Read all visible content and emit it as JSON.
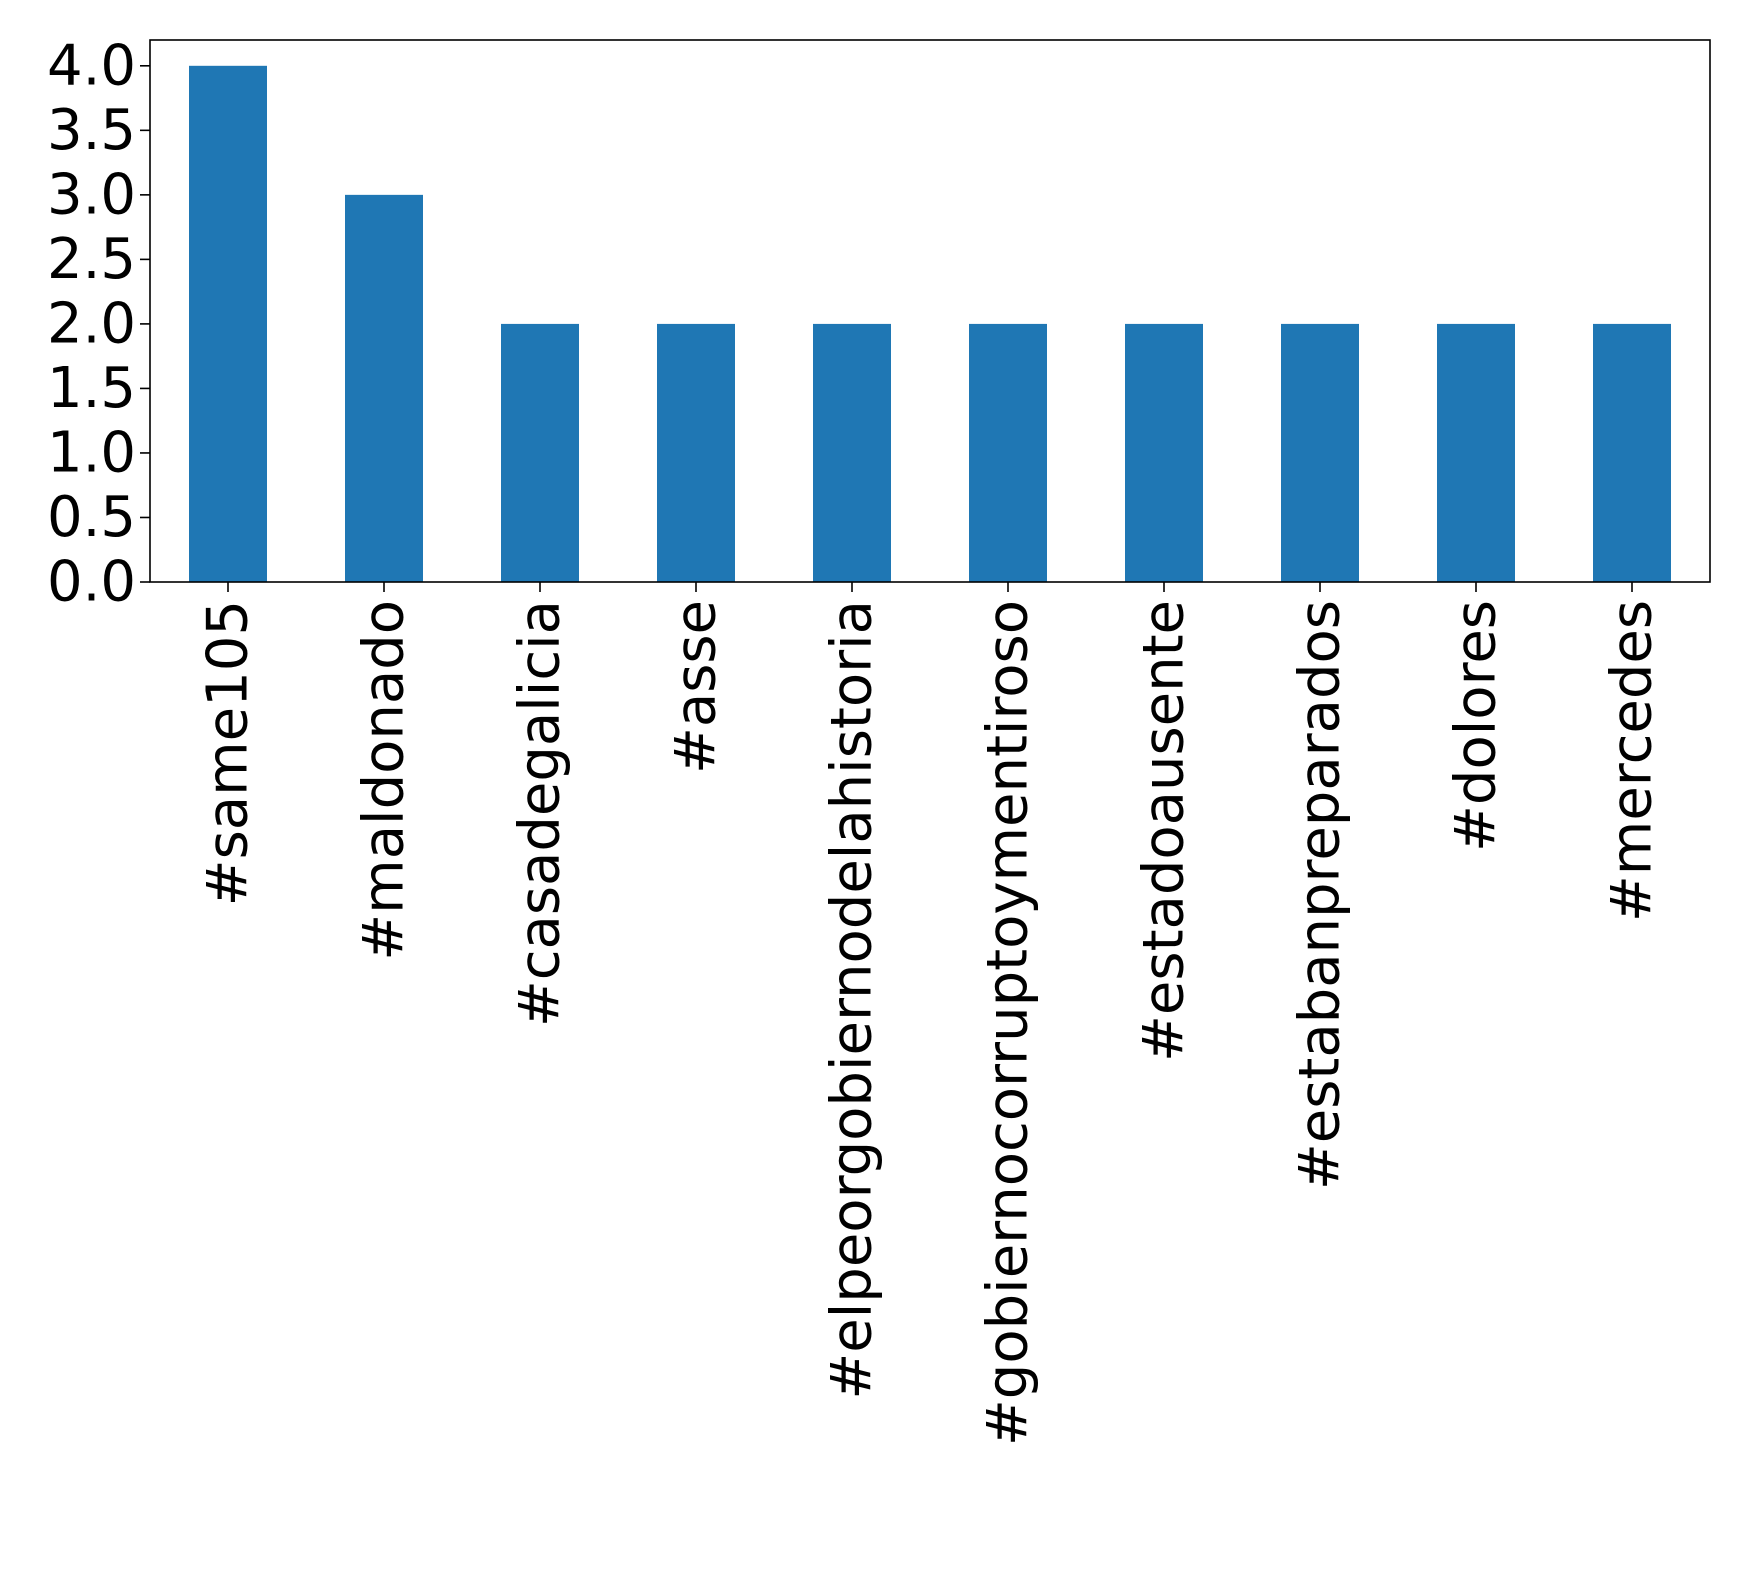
{
  "chart_data": {
    "type": "bar",
    "title": "",
    "xlabel": "",
    "ylabel": "",
    "categories": [
      "#same105",
      "#maldonado",
      "#casadegalicia",
      "#asse",
      "#elpeorgobiernodelahistoria",
      "#gobiernocorruptoymentiroso",
      "#estadoausente",
      "#estabanpreparados",
      "#dolores",
      "#mercedes"
    ],
    "values": [
      4,
      3,
      2,
      2,
      2,
      2,
      2,
      2,
      2,
      2
    ],
    "ylim": [
      0,
      4.2
    ],
    "yticks": [
      0.0,
      0.5,
      1.0,
      1.5,
      2.0,
      2.5,
      3.0,
      3.5,
      4.0
    ],
    "ytick_labels": [
      "0.0",
      "0.5",
      "1.0",
      "1.5",
      "2.0",
      "2.5",
      "3.0",
      "3.5",
      "4.0"
    ],
    "grid": false,
    "legend": "none",
    "bar_color": "#1f77b4"
  }
}
